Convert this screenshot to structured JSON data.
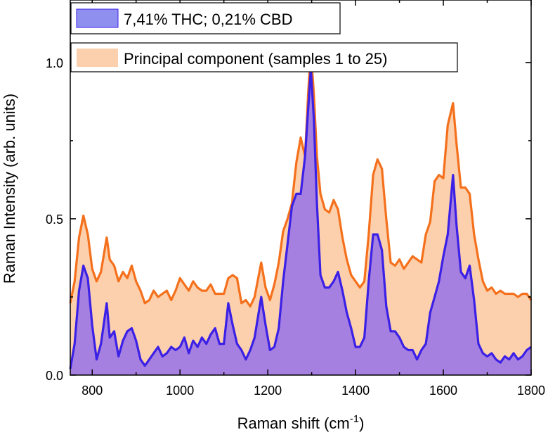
{
  "chart_data": {
    "type": "area",
    "xlabel": "Raman shift (cm",
    "xlabel_sup": "-1",
    "xlabel_end": ")",
    "ylabel": "Raman Intensity (arb. units)",
    "xlim": [
      750,
      1800
    ],
    "ylim": [
      0,
      1.2
    ],
    "x_ticks": [
      800,
      1000,
      1200,
      1400,
      1600,
      1800
    ],
    "x_tick_labels": [
      "800",
      "1000",
      "1200",
      "1400",
      "1600",
      "1800"
    ],
    "y_ticks": [
      0,
      0.5,
      1.0
    ],
    "y_tick_labels": [
      "0.0",
      "0.5",
      "1.0"
    ],
    "grid": false,
    "series": [
      {
        "name": "Principal component (samples 1 to 25)",
        "fill": "#fdd0ad",
        "line": "#f4701c",
        "x": [
          750,
          760,
          770,
          780,
          790,
          800,
          810,
          820,
          833,
          840,
          850,
          860,
          870,
          880,
          890,
          900,
          910,
          920,
          930,
          940,
          950,
          960,
          970,
          980,
          990,
          1000,
          1010,
          1020,
          1030,
          1040,
          1050,
          1060,
          1070,
          1080,
          1090,
          1100,
          1110,
          1120,
          1130,
          1140,
          1150,
          1160,
          1170,
          1185,
          1195,
          1205,
          1215,
          1225,
          1235,
          1245,
          1255,
          1265,
          1275,
          1285,
          1292,
          1298,
          1305,
          1312,
          1320,
          1330,
          1340,
          1350,
          1360,
          1370,
          1380,
          1390,
          1400,
          1410,
          1420,
          1430,
          1440,
          1450,
          1460,
          1470,
          1480,
          1490,
          1500,
          1510,
          1520,
          1530,
          1540,
          1550,
          1560,
          1570,
          1580,
          1590,
          1600,
          1610,
          1622,
          1630,
          1640,
          1650,
          1660,
          1670,
          1680,
          1690,
          1700,
          1710,
          1720,
          1730,
          1740,
          1750,
          1760,
          1770,
          1780,
          1790,
          1800
        ],
        "y": [
          0.23,
          0.3,
          0.44,
          0.51,
          0.45,
          0.34,
          0.3,
          0.33,
          0.44,
          0.37,
          0.35,
          0.3,
          0.33,
          0.31,
          0.35,
          0.3,
          0.27,
          0.23,
          0.24,
          0.27,
          0.25,
          0.26,
          0.27,
          0.24,
          0.27,
          0.31,
          0.29,
          0.27,
          0.3,
          0.28,
          0.27,
          0.27,
          0.29,
          0.26,
          0.26,
          0.26,
          0.31,
          0.32,
          0.31,
          0.23,
          0.24,
          0.22,
          0.25,
          0.36,
          0.28,
          0.24,
          0.29,
          0.36,
          0.46,
          0.5,
          0.55,
          0.68,
          0.76,
          0.7,
          0.9,
          1.04,
          0.9,
          0.7,
          0.58,
          0.53,
          0.52,
          0.56,
          0.53,
          0.44,
          0.37,
          0.32,
          0.3,
          0.28,
          0.3,
          0.45,
          0.64,
          0.69,
          0.66,
          0.5,
          0.36,
          0.35,
          0.37,
          0.34,
          0.36,
          0.38,
          0.37,
          0.36,
          0.45,
          0.49,
          0.62,
          0.64,
          0.63,
          0.8,
          0.87,
          0.74,
          0.6,
          0.6,
          0.58,
          0.45,
          0.37,
          0.3,
          0.27,
          0.28,
          0.26,
          0.27,
          0.26,
          0.26,
          0.26,
          0.25,
          0.26,
          0.26,
          0.24
        ]
      },
      {
        "name": "7,41% THC; 0,21% CBD",
        "fill": "#a680e0",
        "line": "#3b20e6",
        "legend_fill": "#8f8ff0",
        "x": [
          750,
          760,
          770,
          780,
          790,
          800,
          810,
          820,
          833,
          840,
          850,
          860,
          870,
          880,
          890,
          900,
          910,
          920,
          930,
          940,
          950,
          960,
          970,
          980,
          990,
          1000,
          1010,
          1020,
          1030,
          1040,
          1050,
          1060,
          1070,
          1080,
          1090,
          1100,
          1110,
          1120,
          1130,
          1140,
          1150,
          1160,
          1170,
          1185,
          1195,
          1205,
          1215,
          1225,
          1235,
          1245,
          1255,
          1265,
          1275,
          1285,
          1292,
          1298,
          1305,
          1312,
          1320,
          1330,
          1340,
          1350,
          1360,
          1370,
          1380,
          1390,
          1400,
          1410,
          1420,
          1430,
          1440,
          1450,
          1460,
          1470,
          1480,
          1490,
          1500,
          1510,
          1520,
          1530,
          1540,
          1550,
          1560,
          1570,
          1580,
          1590,
          1600,
          1610,
          1622,
          1630,
          1640,
          1650,
          1660,
          1670,
          1680,
          1690,
          1700,
          1710,
          1720,
          1730,
          1740,
          1750,
          1760,
          1770,
          1780,
          1790,
          1800
        ],
        "y": [
          0.02,
          0.1,
          0.27,
          0.35,
          0.31,
          0.16,
          0.05,
          0.1,
          0.23,
          0.12,
          0.14,
          0.06,
          0.11,
          0.14,
          0.15,
          0.11,
          0.05,
          0.03,
          0.05,
          0.07,
          0.09,
          0.06,
          0.07,
          0.09,
          0.08,
          0.09,
          0.12,
          0.07,
          0.11,
          0.09,
          0.12,
          0.1,
          0.13,
          0.15,
          0.1,
          0.1,
          0.23,
          0.16,
          0.1,
          0.08,
          0.05,
          0.08,
          0.12,
          0.25,
          0.16,
          0.08,
          0.09,
          0.15,
          0.3,
          0.42,
          0.54,
          0.58,
          0.58,
          0.7,
          0.85,
          0.98,
          0.82,
          0.55,
          0.32,
          0.28,
          0.28,
          0.3,
          0.33,
          0.27,
          0.2,
          0.15,
          0.09,
          0.09,
          0.12,
          0.3,
          0.45,
          0.45,
          0.4,
          0.22,
          0.14,
          0.14,
          0.12,
          0.09,
          0.08,
          0.08,
          0.05,
          0.08,
          0.1,
          0.2,
          0.25,
          0.3,
          0.38,
          0.45,
          0.64,
          0.48,
          0.33,
          0.31,
          0.35,
          0.24,
          0.1,
          0.07,
          0.06,
          0.07,
          0.05,
          0.04,
          0.06,
          0.05,
          0.07,
          0.05,
          0.06,
          0.08,
          0.09
        ]
      }
    ]
  }
}
